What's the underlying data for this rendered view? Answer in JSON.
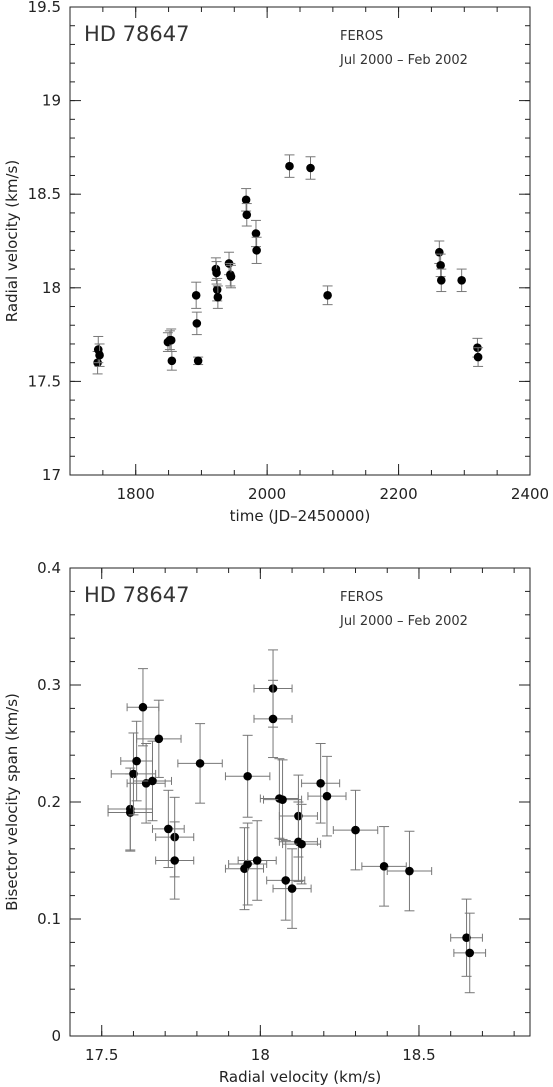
{
  "chart_data": [
    {
      "type": "scatter",
      "title": "HD 78647",
      "annotations": [
        "FEROS",
        "Jul 2000 – Feb 2002"
      ],
      "xlabel": "time (JD–2450000)",
      "ylabel": "Radial velocity (km/s)",
      "xlim": [
        1700,
        2400
      ],
      "ylim": [
        17,
        19.5
      ],
      "xticks": [
        "1800",
        "2000",
        "2200",
        "2400"
      ],
      "yticks": [
        "17",
        "17.5",
        "18",
        "18.5",
        "19",
        "19.5"
      ],
      "xtick_values": [
        1800,
        2000,
        2200,
        2400
      ],
      "ytick_values": [
        17,
        17.5,
        18,
        18.5,
        19,
        19.5
      ],
      "grid": false,
      "points": [
        {
          "x": 1742,
          "y": 17.6,
          "yerr": 0.06
        },
        {
          "x": 1743,
          "y": 17.67,
          "yerr": 0.07
        },
        {
          "x": 1745,
          "y": 17.64,
          "yerr": 0.06
        },
        {
          "x": 1849,
          "y": 17.71,
          "yerr": 0.05
        },
        {
          "x": 1852,
          "y": 17.72,
          "yerr": 0.05
        },
        {
          "x": 1854,
          "y": 17.72,
          "yerr": 0.06
        },
        {
          "x": 1855,
          "y": 17.61,
          "yerr": 0.05
        },
        {
          "x": 1892,
          "y": 17.96,
          "yerr": 0.07
        },
        {
          "x": 1893,
          "y": 17.81,
          "yerr": 0.06
        },
        {
          "x": 1895,
          "y": 17.61,
          "yerr": 0.02
        },
        {
          "x": 1922,
          "y": 18.1,
          "yerr": 0.06
        },
        {
          "x": 1923,
          "y": 18.08,
          "yerr": 0.06
        },
        {
          "x": 1924,
          "y": 17.99,
          "yerr": 0.06
        },
        {
          "x": 1925,
          "y": 17.95,
          "yerr": 0.06
        },
        {
          "x": 1942,
          "y": 18.13,
          "yerr": 0.06
        },
        {
          "x": 1944,
          "y": 18.07,
          "yerr": 0.06
        },
        {
          "x": 1945,
          "y": 18.06,
          "yerr": 0.06
        },
        {
          "x": 1968,
          "y": 18.47,
          "yerr": 0.06
        },
        {
          "x": 1969,
          "y": 18.39,
          "yerr": 0.06
        },
        {
          "x": 1983,
          "y": 18.29,
          "yerr": 0.07
        },
        {
          "x": 1984,
          "y": 18.2,
          "yerr": 0.07
        },
        {
          "x": 2034,
          "y": 18.65,
          "yerr": 0.06
        },
        {
          "x": 2066,
          "y": 18.64,
          "yerr": 0.06
        },
        {
          "x": 2092,
          "y": 17.96,
          "yerr": 0.05
        },
        {
          "x": 2262,
          "y": 18.19,
          "yerr": 0.06
        },
        {
          "x": 2264,
          "y": 18.12,
          "yerr": 0.06
        },
        {
          "x": 2265,
          "y": 18.04,
          "yerr": 0.06
        },
        {
          "x": 2296,
          "y": 18.04,
          "yerr": 0.06
        },
        {
          "x": 2320,
          "y": 17.68,
          "yerr": 0.05
        },
        {
          "x": 2321,
          "y": 17.63,
          "yerr": 0.05
        }
      ]
    },
    {
      "type": "scatter",
      "title": "HD 78647",
      "annotations": [
        "FEROS",
        "Jul 2000 – Feb 2002"
      ],
      "xlabel": "Radial velocity (km/s)",
      "ylabel": "Bisector velocity span (km/s)",
      "xlim": [
        17.4,
        18.85
      ],
      "ylim": [
        0,
        0.4
      ],
      "xticks": [
        "17.5",
        "18",
        "18.5"
      ],
      "yticks": [
        "0",
        "0.1",
        "0.2",
        "0.3",
        "0.4"
      ],
      "xtick_values": [
        17.5,
        18,
        18.5
      ],
      "ytick_values": [
        0,
        0.1,
        0.2,
        0.3,
        0.4
      ],
      "grid": false,
      "points": [
        {
          "x": 17.59,
          "y": 0.194,
          "xerr": 0.07,
          "yerr": 0.035
        },
        {
          "x": 17.59,
          "y": 0.191,
          "xerr": 0.07,
          "yerr": 0.033
        },
        {
          "x": 17.6,
          "y": 0.224,
          "xerr": 0.07,
          "yerr": 0.035
        },
        {
          "x": 17.61,
          "y": 0.235,
          "xerr": 0.05,
          "yerr": 0.034
        },
        {
          "x": 17.63,
          "y": 0.281,
          "xerr": 0.05,
          "yerr": 0.033
        },
        {
          "x": 17.64,
          "y": 0.216,
          "xerr": 0.06,
          "yerr": 0.034
        },
        {
          "x": 17.66,
          "y": 0.218,
          "xerr": 0.06,
          "yerr": 0.034
        },
        {
          "x": 17.68,
          "y": 0.254,
          "xerr": 0.07,
          "yerr": 0.033
        },
        {
          "x": 17.71,
          "y": 0.177,
          "xerr": 0.05,
          "yerr": 0.033
        },
        {
          "x": 17.73,
          "y": 0.17,
          "xerr": 0.06,
          "yerr": 0.034
        },
        {
          "x": 17.73,
          "y": 0.15,
          "xerr": 0.06,
          "yerr": 0.033
        },
        {
          "x": 17.81,
          "y": 0.233,
          "xerr": 0.07,
          "yerr": 0.034
        },
        {
          "x": 17.95,
          "y": 0.143,
          "xerr": 0.06,
          "yerr": 0.035
        },
        {
          "x": 17.96,
          "y": 0.222,
          "xerr": 0.07,
          "yerr": 0.035
        },
        {
          "x": 17.96,
          "y": 0.147,
          "xerr": 0.06,
          "yerr": 0.035
        },
        {
          "x": 17.99,
          "y": 0.15,
          "xerr": 0.06,
          "yerr": 0.034
        },
        {
          "x": 18.04,
          "y": 0.297,
          "xerr": 0.06,
          "yerr": 0.033
        },
        {
          "x": 18.04,
          "y": 0.271,
          "xerr": 0.06,
          "yerr": 0.033
        },
        {
          "x": 18.06,
          "y": 0.203,
          "xerr": 0.06,
          "yerr": 0.034
        },
        {
          "x": 18.07,
          "y": 0.202,
          "xerr": 0.06,
          "yerr": 0.034
        },
        {
          "x": 18.08,
          "y": 0.133,
          "xerr": 0.06,
          "yerr": 0.034
        },
        {
          "x": 18.1,
          "y": 0.126,
          "xerr": 0.06,
          "yerr": 0.034
        },
        {
          "x": 18.12,
          "y": 0.188,
          "xerr": 0.06,
          "yerr": 0.035
        },
        {
          "x": 18.12,
          "y": 0.166,
          "xerr": 0.06,
          "yerr": 0.034
        },
        {
          "x": 18.13,
          "y": 0.164,
          "xerr": 0.06,
          "yerr": 0.034
        },
        {
          "x": 18.19,
          "y": 0.216,
          "xerr": 0.06,
          "yerr": 0.034
        },
        {
          "x": 18.21,
          "y": 0.205,
          "xerr": 0.06,
          "yerr": 0.034
        },
        {
          "x": 18.3,
          "y": 0.176,
          "xerr": 0.07,
          "yerr": 0.034
        },
        {
          "x": 18.39,
          "y": 0.145,
          "xerr": 0.07,
          "yerr": 0.034
        },
        {
          "x": 18.47,
          "y": 0.141,
          "xerr": 0.07,
          "yerr": 0.034
        },
        {
          "x": 18.65,
          "y": 0.084,
          "xerr": 0.05,
          "yerr": 0.033
        },
        {
          "x": 18.66,
          "y": 0.071,
          "xerr": 0.05,
          "yerr": 0.034
        }
      ]
    }
  ]
}
